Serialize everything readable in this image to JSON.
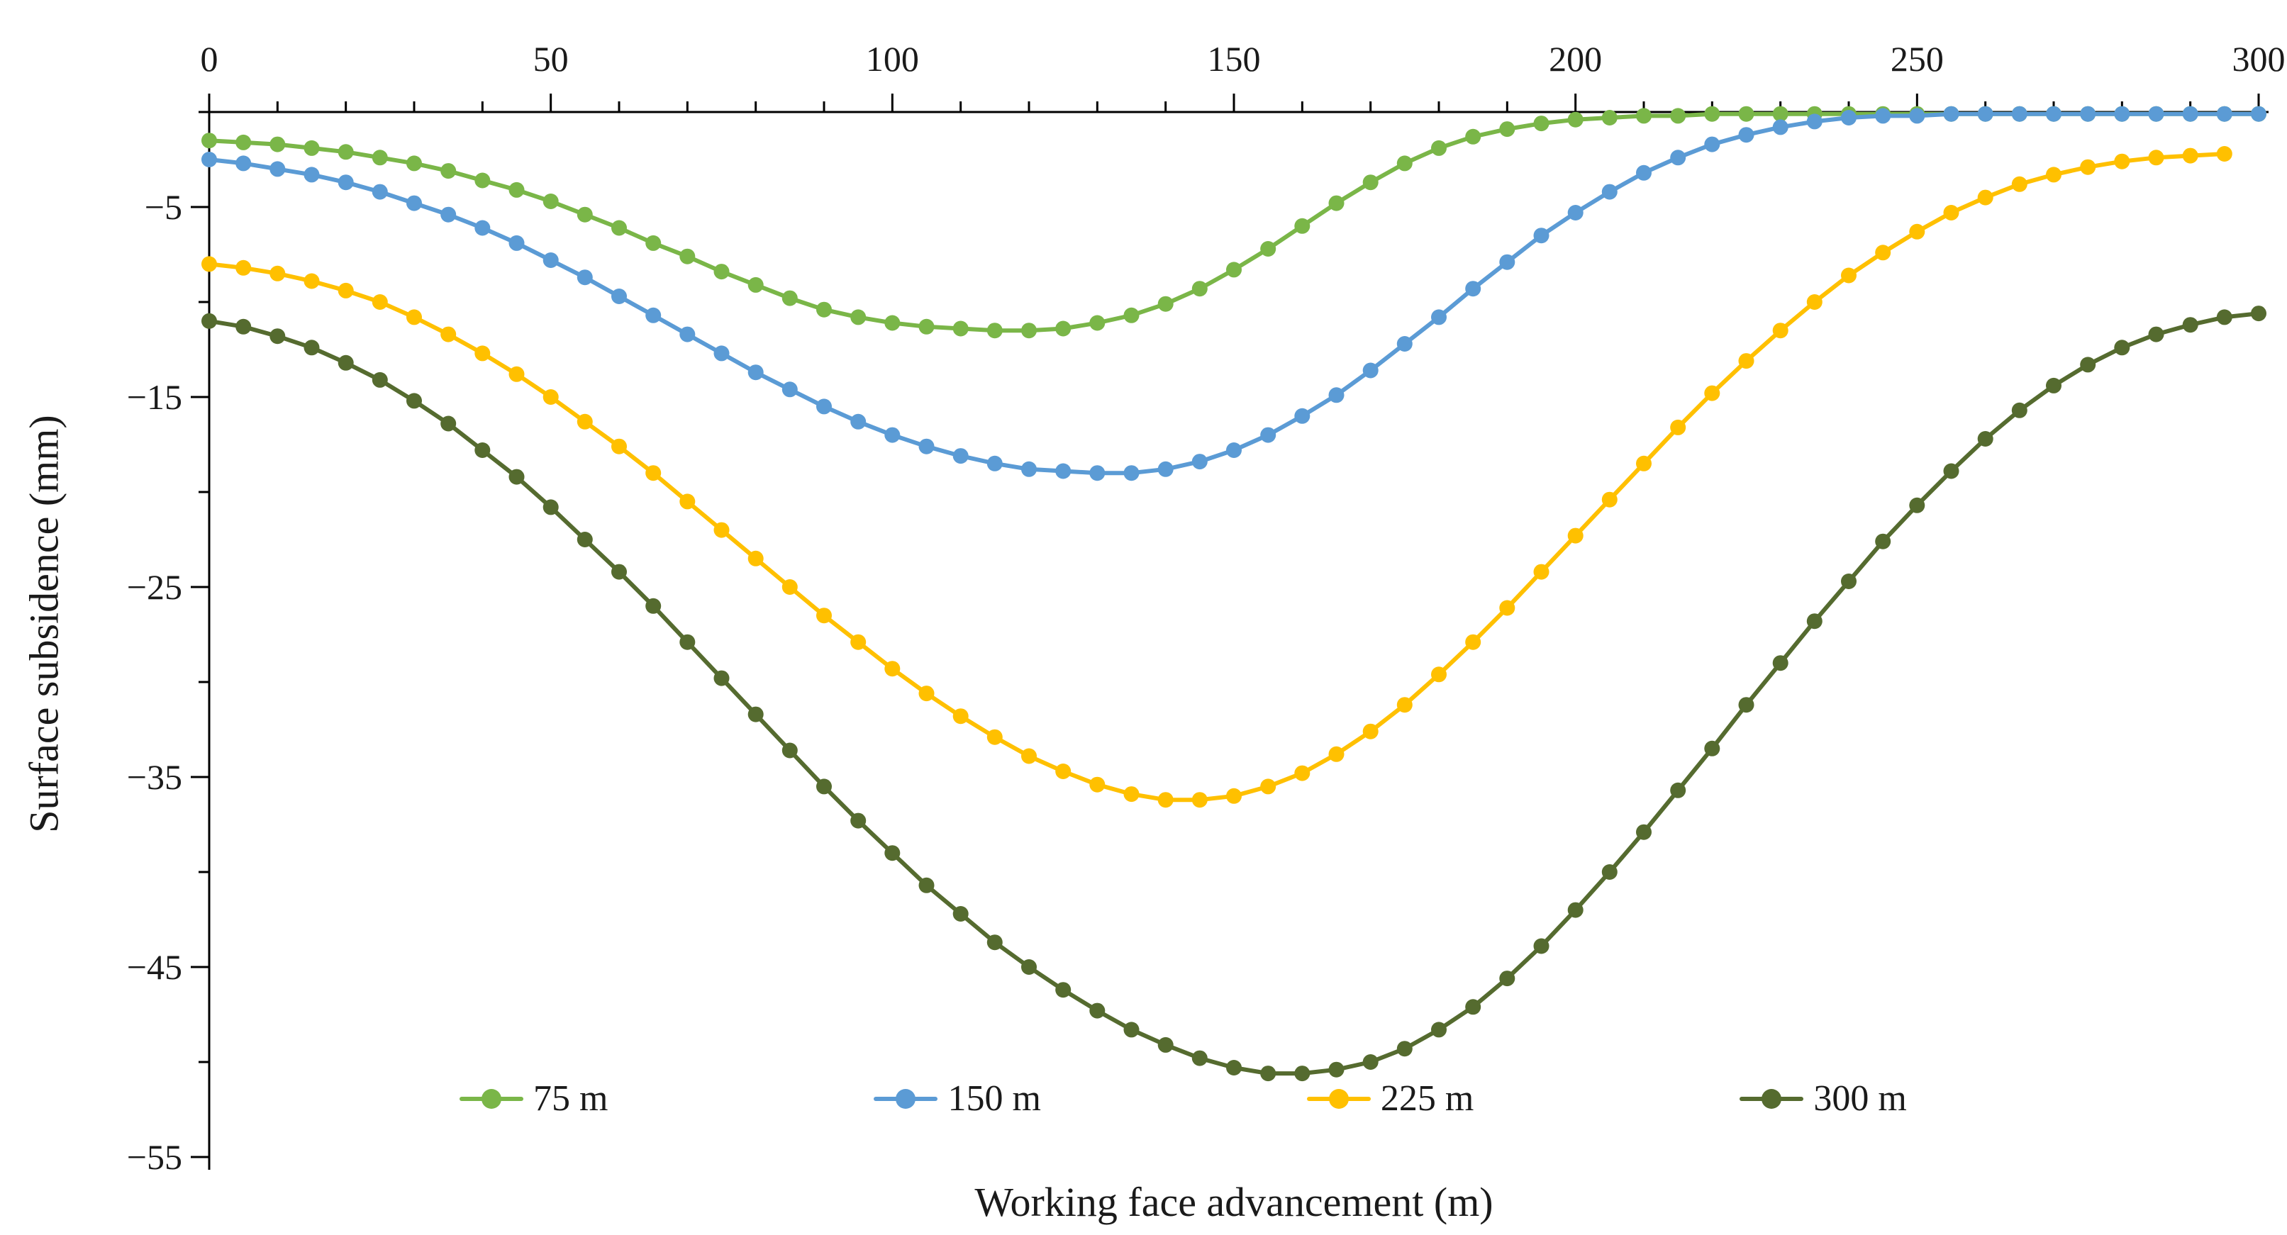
{
  "chart_data": {
    "type": "line",
    "title": "",
    "xlabel": "Working face advancement (m)",
    "ylabel": "Surface subsidence (mm)",
    "grid": false,
    "legend_position": "bottom-inside",
    "marker": "circle",
    "background_color": "#FFFFFF",
    "axis_color": "#000000",
    "x_axis": {
      "position": "top",
      "min": 0,
      "max": 300,
      "major_tick_interval": 50,
      "minor_tick_interval": 10,
      "tick_values": [
        0,
        50,
        100,
        150,
        200,
        250,
        300
      ],
      "tick_labels": [
        "0",
        "50",
        "100",
        "150",
        "200",
        "250",
        "300"
      ]
    },
    "y_axis": {
      "position": "left",
      "min": -55,
      "max": 0,
      "major_tick_interval": 10,
      "minor_tick_interval": 5,
      "tick_values": [
        -5,
        -15,
        -25,
        -35,
        -45,
        -55
      ],
      "tick_labels": [
        "−5",
        "−15",
        "−25",
        "−35",
        "−45",
        "−55"
      ]
    },
    "series": [
      {
        "id": "75m",
        "name": "75 m",
        "color": "#7AB648",
        "x": [
          0,
          5,
          10,
          15,
          20,
          25,
          30,
          35,
          40,
          45,
          50,
          55,
          60,
          65,
          70,
          75,
          80,
          85,
          90,
          95,
          100,
          105,
          110,
          115,
          120,
          125,
          130,
          135,
          140,
          145,
          150,
          155,
          160,
          165,
          170,
          175,
          180,
          185,
          190,
          195,
          200,
          205,
          210,
          215,
          220,
          225,
          230,
          235,
          240,
          245,
          250,
          255,
          260,
          265,
          270,
          275,
          280,
          285,
          290,
          295,
          300
        ],
        "y": [
          -1.5,
          -1.6,
          -1.7,
          -1.9,
          -2.1,
          -2.4,
          -2.7,
          -3.1,
          -3.6,
          -4.1,
          -4.7,
          -5.4,
          -6.1,
          -6.9,
          -7.6,
          -8.4,
          -9.1,
          -9.8,
          -10.4,
          -10.8,
          -11.1,
          -11.3,
          -11.4,
          -11.5,
          -11.5,
          -11.4,
          -11.1,
          -10.7,
          -10.1,
          -9.3,
          -8.3,
          -7.2,
          -6.0,
          -4.8,
          -3.7,
          -2.7,
          -1.9,
          -1.3,
          -0.9,
          -0.6,
          -0.4,
          -0.3,
          -0.2,
          -0.2,
          -0.1,
          -0.1,
          -0.1,
          -0.1,
          -0.1,
          -0.1,
          -0.1,
          -0.1,
          -0.1,
          -0.1,
          -0.1,
          -0.1,
          -0.1,
          -0.1,
          -0.1,
          -0.1,
          -0.1
        ]
      },
      {
        "id": "150m",
        "name": "150 m",
        "color": "#5B9BD5",
        "x": [
          0,
          5,
          10,
          15,
          20,
          25,
          30,
          35,
          40,
          45,
          50,
          55,
          60,
          65,
          70,
          75,
          80,
          85,
          90,
          95,
          100,
          105,
          110,
          115,
          120,
          125,
          130,
          135,
          140,
          145,
          150,
          155,
          160,
          165,
          170,
          175,
          180,
          185,
          190,
          195,
          200,
          205,
          210,
          215,
          220,
          225,
          230,
          235,
          240,
          245,
          250,
          255,
          260,
          265,
          270,
          275,
          280,
          285,
          290,
          295,
          300
        ],
        "y": [
          -2.5,
          -2.7,
          -3.0,
          -3.3,
          -3.7,
          -4.2,
          -4.8,
          -5.4,
          -6.1,
          -6.9,
          -7.8,
          -8.7,
          -9.7,
          -10.7,
          -11.7,
          -12.7,
          -13.7,
          -14.6,
          -15.5,
          -16.3,
          -17.0,
          -17.6,
          -18.1,
          -18.5,
          -18.8,
          -18.9,
          -19.0,
          -19.0,
          -18.8,
          -18.4,
          -17.8,
          -17.0,
          -16.0,
          -14.9,
          -13.6,
          -12.2,
          -10.8,
          -9.3,
          -7.9,
          -6.5,
          -5.3,
          -4.2,
          -3.2,
          -2.4,
          -1.7,
          -1.2,
          -0.8,
          -0.5,
          -0.3,
          -0.2,
          -0.2,
          -0.1,
          -0.1,
          -0.1,
          -0.1,
          -0.1,
          -0.1,
          -0.1,
          -0.1,
          -0.1,
          -0.1
        ]
      },
      {
        "id": "225m",
        "name": "225 m",
        "color": "#FFC000",
        "x": [
          0,
          5,
          10,
          15,
          20,
          25,
          30,
          35,
          40,
          45,
          50,
          55,
          60,
          65,
          70,
          75,
          80,
          85,
          90,
          95,
          100,
          105,
          110,
          115,
          120,
          125,
          130,
          135,
          140,
          145,
          150,
          155,
          160,
          165,
          170,
          175,
          180,
          185,
          190,
          195,
          200,
          205,
          210,
          215,
          220,
          225,
          230,
          235,
          240,
          245,
          250,
          255,
          260,
          265,
          270,
          275,
          280,
          285,
          290,
          295
        ],
        "y": [
          -8.0,
          -8.2,
          -8.5,
          -8.9,
          -9.4,
          -10.0,
          -10.8,
          -11.7,
          -12.7,
          -13.8,
          -15.0,
          -16.3,
          -17.6,
          -19.0,
          -20.5,
          -22.0,
          -23.5,
          -25.0,
          -26.5,
          -27.9,
          -29.3,
          -30.6,
          -31.8,
          -32.9,
          -33.9,
          -34.7,
          -35.4,
          -35.9,
          -36.2,
          -36.2,
          -36.0,
          -35.5,
          -34.8,
          -33.8,
          -32.6,
          -31.2,
          -29.6,
          -27.9,
          -26.1,
          -24.2,
          -22.3,
          -20.4,
          -18.5,
          -16.6,
          -14.8,
          -13.1,
          -11.5,
          -10.0,
          -8.6,
          -7.4,
          -6.3,
          -5.3,
          -4.5,
          -3.8,
          -3.3,
          -2.9,
          -2.6,
          -2.4,
          -2.3,
          -2.2
        ]
      },
      {
        "id": "300m",
        "name": "300 m",
        "color": "#556B2F",
        "x": [
          0,
          5,
          10,
          15,
          20,
          25,
          30,
          35,
          40,
          45,
          50,
          55,
          60,
          65,
          70,
          75,
          80,
          85,
          90,
          95,
          100,
          105,
          110,
          115,
          120,
          125,
          130,
          135,
          140,
          145,
          150,
          155,
          160,
          165,
          170,
          175,
          180,
          185,
          190,
          195,
          200,
          205,
          210,
          215,
          220,
          225,
          230,
          235,
          240,
          245,
          250,
          255,
          260,
          265,
          270,
          275,
          280,
          285,
          290,
          295,
          300
        ],
        "y": [
          -11.0,
          -11.3,
          -11.8,
          -12.4,
          -13.2,
          -14.1,
          -15.2,
          -16.4,
          -17.8,
          -19.2,
          -20.8,
          -22.5,
          -24.2,
          -26.0,
          -27.9,
          -29.8,
          -31.7,
          -33.6,
          -35.5,
          -37.3,
          -39.0,
          -40.7,
          -42.2,
          -43.7,
          -45.0,
          -46.2,
          -47.3,
          -48.3,
          -49.1,
          -49.8,
          -50.3,
          -50.6,
          -50.6,
          -50.4,
          -50.0,
          -49.3,
          -48.3,
          -47.1,
          -45.6,
          -43.9,
          -42.0,
          -40.0,
          -37.9,
          -35.7,
          -33.5,
          -31.2,
          -29.0,
          -26.8,
          -24.7,
          -22.6,
          -20.7,
          -18.9,
          -17.2,
          -15.7,
          -14.4,
          -13.3,
          -12.4,
          -11.7,
          -11.2,
          -10.8,
          -10.6
        ]
      }
    ]
  }
}
